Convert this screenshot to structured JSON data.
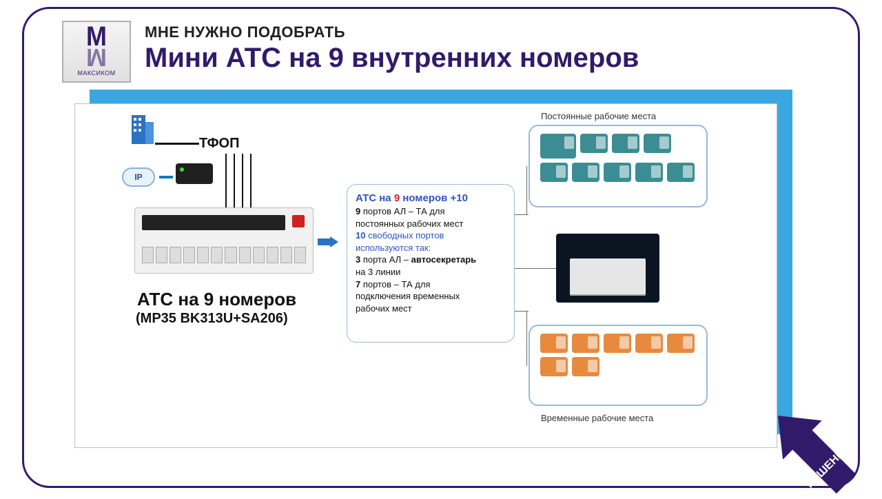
{
  "colors": {
    "frame": "#321a6b",
    "shadow_panel": "#3aa7e0",
    "panel_border": "#c0c0c0",
    "info_border": "#9bb9d6",
    "info_title": "#2a55c4",
    "red": "#d02020",
    "phone_teal": "#3b8d93",
    "phone_orange": "#e78a3e",
    "midbox_bg": "#0b1522",
    "building": "#2a72c4",
    "arrow_fill": "#321a6b"
  },
  "logo": {
    "mark": "M",
    "brand": "МАКСИКОМ"
  },
  "header": {
    "kicker": "МНЕ НУЖНО ПОДОБРАТЬ",
    "title": "Мини АТС на 9 внутренних номеров"
  },
  "left": {
    "tfop": "ТФОП",
    "ip": "IP",
    "atc_title": "АТС на 9 номеров",
    "atc_model": "(MP35 BK313U+SA206)"
  },
  "info": {
    "title_pre": "АТС на ",
    "title_n": "9",
    "title_post": " номеров  +10",
    "l1_b": "9",
    "l1": " портов АЛ – ТА для\nпостоянных рабочих мест",
    "l2_b": "10",
    "l2": " свободных портов\nиспользуются так:",
    "l3_b": "3",
    "l3": " порта АЛ – ",
    "l3_b2": "автосекретарь",
    "l3_tail": "\n                    на 3 линии",
    "l4_b": "7",
    "l4": " портов – ТА для\nподключения временных\nрабочих мест"
  },
  "groups": {
    "top_label": "Постоянные рабочие места",
    "bot_label": "Временные  рабочие места",
    "top_count": 9,
    "bot_count": 7
  },
  "solutions_label": "РЕШЕНИЯ"
}
